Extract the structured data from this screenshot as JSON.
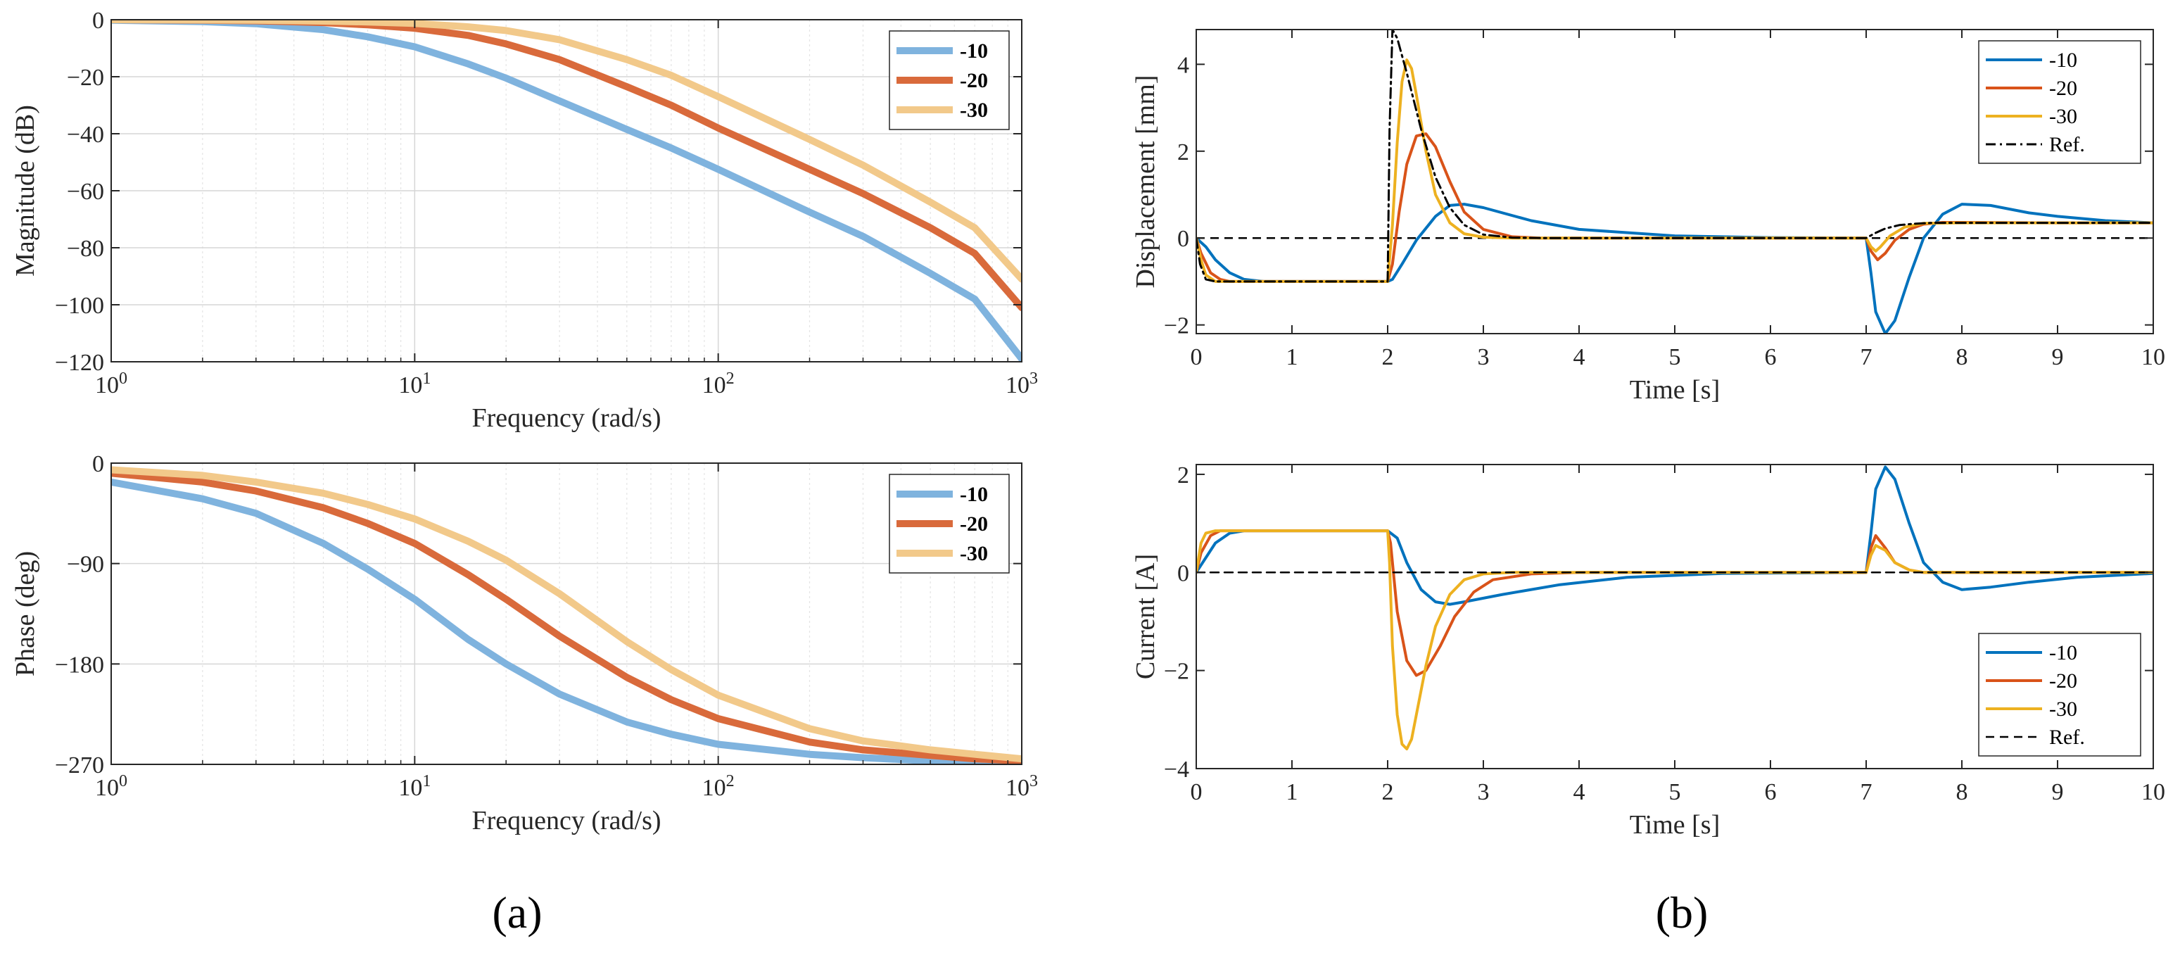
{
  "panel_labels": {
    "a": "(a)",
    "b": "(b)"
  },
  "chart_data": [
    {
      "id": "bode-magnitude",
      "type": "line",
      "xscale": "log",
      "xlim": [
        1,
        1000
      ],
      "ylim": [
        -120,
        0
      ],
      "xlabel": "Frequency  (rad/s)",
      "ylabel": "Magnitude (dB)",
      "xticks": [
        {
          "v": 1,
          "label": "10",
          "exp": "0"
        },
        {
          "v": 10,
          "label": "10",
          "exp": "1"
        },
        {
          "v": 100,
          "label": "10",
          "exp": "2"
        },
        {
          "v": 1000,
          "label": "10",
          "exp": "3"
        }
      ],
      "yticks": [
        {
          "v": 0,
          "label": "0"
        },
        {
          "v": -20,
          "label": "−20"
        },
        {
          "v": -40,
          "label": "−40"
        },
        {
          "v": -60,
          "label": "−60"
        },
        {
          "v": -80,
          "label": "−80"
        },
        {
          "v": -100,
          "label": "−100"
        },
        {
          "v": -120,
          "label": "−120"
        }
      ],
      "grid": true,
      "legend": "top-right",
      "legend_bold": true,
      "series": [
        {
          "name": "-10",
          "color": "#7fb3de",
          "x": [
            1,
            2,
            3,
            5,
            7,
            10,
            15,
            20,
            30,
            50,
            70,
            100,
            200,
            300,
            500,
            700,
            1000
          ],
          "values": [
            -0.2,
            -0.7,
            -1.4,
            -3.5,
            -6,
            -9.5,
            -15.5,
            -20.5,
            -28.5,
            -38.5,
            -45,
            -52.5,
            -67.5,
            -76,
            -89,
            -98,
            -119
          ]
        },
        {
          "name": "-20",
          "color": "#d96a3b",
          "x": [
            1,
            2,
            3,
            5,
            7,
            10,
            15,
            20,
            30,
            50,
            70,
            100,
            200,
            300,
            500,
            700,
            1000
          ],
          "values": [
            0,
            -0.2,
            -0.4,
            -1,
            -1.8,
            -3,
            -5.5,
            -8.5,
            -14,
            -23.5,
            -30,
            -38,
            -52.5,
            -61,
            -73,
            -82,
            -101
          ]
        },
        {
          "name": "-30",
          "color": "#f2c98a",
          "x": [
            1,
            2,
            3,
            5,
            7,
            10,
            15,
            20,
            30,
            50,
            70,
            100,
            200,
            300,
            500,
            700,
            1000
          ],
          "values": [
            0,
            -0.1,
            -0.2,
            -0.5,
            -0.8,
            -1.3,
            -2.5,
            -3.8,
            -7,
            -14,
            -19.5,
            -27,
            -42,
            -51,
            -64,
            -73,
            -91
          ]
        }
      ]
    },
    {
      "id": "bode-phase",
      "type": "line",
      "xscale": "log",
      "xlim": [
        1,
        1000
      ],
      "ylim": [
        -270,
        0
      ],
      "xlabel": "Frequency  (rad/s)",
      "ylabel": "Phase (deg)",
      "xticks": [
        {
          "v": 1,
          "label": "10",
          "exp": "0"
        },
        {
          "v": 10,
          "label": "10",
          "exp": "1"
        },
        {
          "v": 100,
          "label": "10",
          "exp": "2"
        },
        {
          "v": 1000,
          "label": "10",
          "exp": "3"
        }
      ],
      "yticks": [
        {
          "v": 0,
          "label": "0"
        },
        {
          "v": -90,
          "label": "−90"
        },
        {
          "v": -180,
          "label": "−180"
        },
        {
          "v": -270,
          "label": "−270"
        }
      ],
      "grid": true,
      "legend": "top-right",
      "legend_bold": true,
      "series": [
        {
          "name": "-10",
          "color": "#7fb3de",
          "x": [
            1,
            2,
            3,
            5,
            7,
            10,
            15,
            20,
            30,
            50,
            70,
            100,
            200,
            300,
            500,
            700,
            1000
          ],
          "values": [
            -17,
            -32,
            -45,
            -72,
            -95,
            -122,
            -158,
            -180,
            -207,
            -232,
            -243,
            -252,
            -261,
            -264,
            -267,
            -268,
            -269
          ]
        },
        {
          "name": "-20",
          "color": "#d96a3b",
          "x": [
            1,
            2,
            3,
            5,
            7,
            10,
            15,
            20,
            30,
            50,
            70,
            100,
            200,
            300,
            500,
            700,
            1000
          ],
          "values": [
            -9,
            -17,
            -25,
            -40,
            -54,
            -72,
            -100,
            -122,
            -155,
            -192,
            -212,
            -229,
            -250,
            -257,
            -262,
            -265,
            -267
          ]
        },
        {
          "name": "-30",
          "color": "#f2c98a",
          "x": [
            1,
            2,
            3,
            5,
            7,
            10,
            15,
            20,
            30,
            50,
            70,
            100,
            200,
            300,
            500,
            700,
            1000
          ],
          "values": [
            -6,
            -11,
            -17,
            -27,
            -37,
            -50,
            -70,
            -87,
            -117,
            -160,
            -185,
            -208,
            -238,
            -249,
            -257,
            -261,
            -265
          ]
        }
      ]
    },
    {
      "id": "displacement",
      "type": "line",
      "xscale": "linear",
      "xlim": [
        0,
        10
      ],
      "ylim": [
        -2.2,
        4.8
      ],
      "xlabel": "Time [s]",
      "ylabel": "Displacement [mm]",
      "xticks": [
        {
          "v": 0,
          "label": "0"
        },
        {
          "v": 1,
          "label": "1"
        },
        {
          "v": 2,
          "label": "2"
        },
        {
          "v": 3,
          "label": "3"
        },
        {
          "v": 4,
          "label": "4"
        },
        {
          "v": 5,
          "label": "5"
        },
        {
          "v": 6,
          "label": "6"
        },
        {
          "v": 7,
          "label": "7"
        },
        {
          "v": 8,
          "label": "8"
        },
        {
          "v": 9,
          "label": "9"
        },
        {
          "v": 10,
          "label": "10"
        }
      ],
      "yticks": [
        {
          "v": -2,
          "label": "−2"
        },
        {
          "v": 0,
          "label": "0"
        },
        {
          "v": 2,
          "label": "2"
        },
        {
          "v": 4,
          "label": "4"
        }
      ],
      "grid": false,
      "legend": "top-right",
      "legend_bold": false,
      "zero_line": true,
      "series": [
        {
          "name": "-10",
          "color": "#0072bd",
          "x": [
            0,
            0.1,
            0.2,
            0.35,
            0.5,
            0.7,
            1,
            1.5,
            2,
            2.05,
            2.15,
            2.3,
            2.5,
            2.65,
            2.8,
            3,
            3.5,
            4,
            5,
            6,
            7,
            7.05,
            7.1,
            7.2,
            7.3,
            7.45,
            7.6,
            7.8,
            8,
            8.3,
            8.7,
            9,
            9.5,
            10
          ],
          "values": [
            0,
            -0.2,
            -0.5,
            -0.8,
            -0.95,
            -1.0,
            -1.0,
            -1.0,
            -1.0,
            -0.95,
            -0.6,
            -0.05,
            0.5,
            0.75,
            0.78,
            0.7,
            0.4,
            0.2,
            0.05,
            0.01,
            0,
            -0.8,
            -1.7,
            -2.2,
            -1.9,
            -0.9,
            0.0,
            0.55,
            0.78,
            0.75,
            0.58,
            0.5,
            0.4,
            0.35
          ]
        },
        {
          "name": "-20",
          "color": "#d95319",
          "x": [
            0,
            0.05,
            0.15,
            0.25,
            0.35,
            0.5,
            1,
            1.5,
            2,
            2.05,
            2.12,
            2.2,
            2.3,
            2.4,
            2.5,
            2.65,
            2.8,
            3,
            3.3,
            3.6,
            4,
            5,
            7,
            7.05,
            7.12,
            7.2,
            7.3,
            7.45,
            7.6,
            7.8,
            8,
            9,
            10
          ],
          "values": [
            0,
            -0.35,
            -0.8,
            -0.95,
            -1.0,
            -1.0,
            -1.0,
            -1.0,
            -1.0,
            -0.6,
            0.6,
            1.7,
            2.35,
            2.4,
            2.1,
            1.3,
            0.6,
            0.2,
            0.03,
            0,
            0,
            0,
            0,
            -0.3,
            -0.5,
            -0.35,
            -0.05,
            0.2,
            0.32,
            0.36,
            0.36,
            0.35,
            0.35
          ]
        },
        {
          "name": "-30",
          "color": "#edb120",
          "x": [
            0,
            0.05,
            0.1,
            0.2,
            0.3,
            0.5,
            1,
            1.5,
            2,
            2.05,
            2.1,
            2.15,
            2.2,
            2.25,
            2.3,
            2.4,
            2.5,
            2.65,
            2.8,
            3,
            3.3,
            4,
            7,
            7.05,
            7.1,
            7.15,
            7.25,
            7.4,
            7.6,
            8,
            10
          ],
          "values": [
            0,
            -0.5,
            -0.85,
            -1.0,
            -1.0,
            -1.0,
            -1.0,
            -1.0,
            -1.0,
            0.3,
            2.2,
            3.6,
            4.1,
            3.9,
            3.3,
            2.0,
            1.0,
            0.35,
            0.1,
            0.02,
            0,
            0,
            0,
            -0.2,
            -0.3,
            -0.2,
            0.05,
            0.25,
            0.34,
            0.35,
            0.35
          ]
        },
        {
          "name": "Ref.",
          "color": "#000000",
          "dash": "14,6,3,6",
          "width": 3,
          "x": [
            0,
            0.04,
            0.1,
            0.2,
            0.3,
            0.5,
            1,
            2,
            2.02,
            2.05,
            2.1,
            2.2,
            2.35,
            2.5,
            2.65,
            2.8,
            3,
            3.3,
            3.6,
            4,
            7,
            7.1,
            7.2,
            7.35,
            7.5,
            7.7,
            8,
            10
          ],
          "values": [
            0,
            -0.6,
            -0.95,
            -1.0,
            -1.0,
            -1.0,
            -1.0,
            -1.0,
            2.5,
            4.8,
            4.6,
            3.8,
            2.5,
            1.4,
            0.7,
            0.3,
            0.08,
            0.01,
            0,
            0,
            0,
            0.12,
            0.22,
            0.3,
            0.33,
            0.35,
            0.35,
            0.35
          ]
        }
      ]
    },
    {
      "id": "current",
      "type": "line",
      "xscale": "linear",
      "xlim": [
        0,
        10
      ],
      "ylim": [
        -4,
        2.2
      ],
      "xlabel": "Time [s]",
      "ylabel": "Current [A]",
      "xticks": [
        {
          "v": 0,
          "label": "0"
        },
        {
          "v": 1,
          "label": "1"
        },
        {
          "v": 2,
          "label": "2"
        },
        {
          "v": 3,
          "label": "3"
        },
        {
          "v": 4,
          "label": "4"
        },
        {
          "v": 5,
          "label": "5"
        },
        {
          "v": 6,
          "label": "6"
        },
        {
          "v": 7,
          "label": "7"
        },
        {
          "v": 8,
          "label": "8"
        },
        {
          "v": 9,
          "label": "9"
        },
        {
          "v": 10,
          "label": "10"
        }
      ],
      "yticks": [
        {
          "v": -4,
          "label": "−4"
        },
        {
          "v": -2,
          "label": "−2"
        },
        {
          "v": 0,
          "label": "0"
        },
        {
          "v": 2,
          "label": "2"
        }
      ],
      "grid": false,
      "legend": "bottom-right",
      "legend_bold": false,
      "series": [
        {
          "name": "-10",
          "color": "#0072bd",
          "x": [
            0,
            0.1,
            0.2,
            0.35,
            0.5,
            0.7,
            1,
            1.5,
            2,
            2.1,
            2.2,
            2.35,
            2.5,
            2.65,
            2.8,
            3.2,
            3.8,
            4.5,
            5.5,
            7,
            7.05,
            7.1,
            7.2,
            7.3,
            7.45,
            7.6,
            7.8,
            8,
            8.3,
            8.7,
            9.2,
            10
          ],
          "values": [
            0,
            0.3,
            0.6,
            0.8,
            0.85,
            0.85,
            0.85,
            0.85,
            0.85,
            0.7,
            0.2,
            -0.35,
            -0.6,
            -0.65,
            -0.6,
            -0.45,
            -0.25,
            -0.1,
            -0.02,
            0,
            0.8,
            1.7,
            2.15,
            1.9,
            1.0,
            0.2,
            -0.2,
            -0.35,
            -0.3,
            -0.2,
            -0.1,
            -0.02
          ]
        },
        {
          "name": "-20",
          "color": "#d95319",
          "x": [
            0,
            0.05,
            0.15,
            0.25,
            0.35,
            0.5,
            1,
            2,
            2.03,
            2.1,
            2.2,
            2.3,
            2.4,
            2.55,
            2.7,
            2.9,
            3.1,
            3.5,
            4,
            7,
            7.05,
            7.1,
            7.2,
            7.3,
            7.45,
            7.6,
            7.8,
            10
          ],
          "values": [
            0,
            0.4,
            0.75,
            0.85,
            0.85,
            0.85,
            0.85,
            0.85,
            0.6,
            -0.8,
            -1.8,
            -2.1,
            -2.0,
            -1.5,
            -0.9,
            -0.4,
            -0.15,
            -0.03,
            0,
            0,
            0.5,
            0.75,
            0.5,
            0.2,
            0.05,
            0,
            0,
            0
          ]
        },
        {
          "name": "-30",
          "color": "#edb120",
          "x": [
            0,
            0.05,
            0.1,
            0.2,
            0.3,
            0.5,
            1,
            2,
            2.02,
            2.05,
            2.1,
            2.15,
            2.2,
            2.25,
            2.3,
            2.4,
            2.5,
            2.65,
            2.8,
            3,
            3.3,
            4,
            7,
            7.05,
            7.1,
            7.2,
            7.3,
            7.45,
            7.6,
            10
          ],
          "values": [
            0,
            0.6,
            0.8,
            0.85,
            0.85,
            0.85,
            0.85,
            0.85,
            0.2,
            -1.5,
            -2.9,
            -3.5,
            -3.6,
            -3.4,
            -2.9,
            -1.9,
            -1.1,
            -0.45,
            -0.15,
            -0.03,
            0,
            0,
            0,
            0.35,
            0.55,
            0.45,
            0.2,
            0.05,
            0,
            0
          ]
        },
        {
          "name": "Ref.",
          "color": "#000000",
          "dash": "12,8",
          "width": 2.5,
          "x": [
            0,
            10
          ],
          "values": [
            0,
            0
          ]
        }
      ]
    }
  ]
}
